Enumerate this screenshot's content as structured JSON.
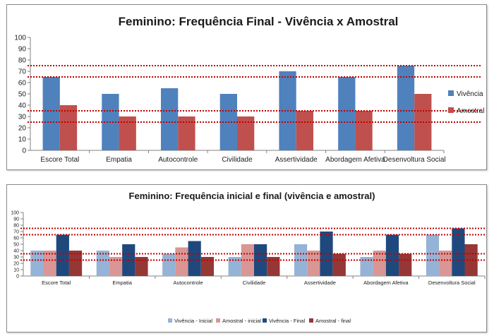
{
  "chart_data": [
    {
      "type": "bar",
      "title": "Feminino: Frequência Final - Vivência x Amostral",
      "categories": [
        "Escore Total",
        "Empatia",
        "Autocontrole",
        "Civilidade",
        "Assertividade",
        "Abordagem Afetiva",
        "Desenvoltura Social"
      ],
      "ylim": [
        0,
        100
      ],
      "ytick_step": 10,
      "legend_position": "right",
      "reference_lines": [
        75,
        65,
        35,
        25
      ],
      "reference_color": "#c00000",
      "series": [
        {
          "name": "Vivência",
          "color": "#4f81bd",
          "values": [
            65,
            50,
            55,
            50,
            70,
            65,
            75
          ]
        },
        {
          "name": "Amostral",
          "color": "#c0504d",
          "values": [
            40,
            30,
            30,
            30,
            35,
            35,
            50
          ]
        }
      ]
    },
    {
      "type": "bar",
      "title": "Feminino: Frequência inicial e final (vivência e amostral)",
      "categories": [
        "Escore Total",
        "Empatia",
        "Autocontrole",
        "Civilidade",
        "Assertividade",
        "Abordagem Afetiva",
        "Desenvoltura Social"
      ],
      "ylim": [
        0,
        100
      ],
      "ytick_step": 10,
      "legend_position": "bottom",
      "reference_lines": [
        75,
        65,
        35,
        25
      ],
      "reference_color": "#c00000",
      "series": [
        {
          "name": "Vivência - Inicial",
          "color": "#95b3d7",
          "values": [
            40,
            40,
            35,
            30,
            50,
            30,
            65
          ]
        },
        {
          "name": "Amostral - inicial",
          "color": "#d99694",
          "values": [
            40,
            30,
            45,
            50,
            40,
            40,
            40
          ]
        },
        {
          "name": "Vivência - Final",
          "color": "#1f497d",
          "values": [
            65,
            50,
            55,
            50,
            70,
            65,
            75
          ]
        },
        {
          "name": "Amostral - final",
          "color": "#953735",
          "values": [
            40,
            30,
            30,
            30,
            35,
            35,
            50
          ]
        }
      ]
    }
  ]
}
